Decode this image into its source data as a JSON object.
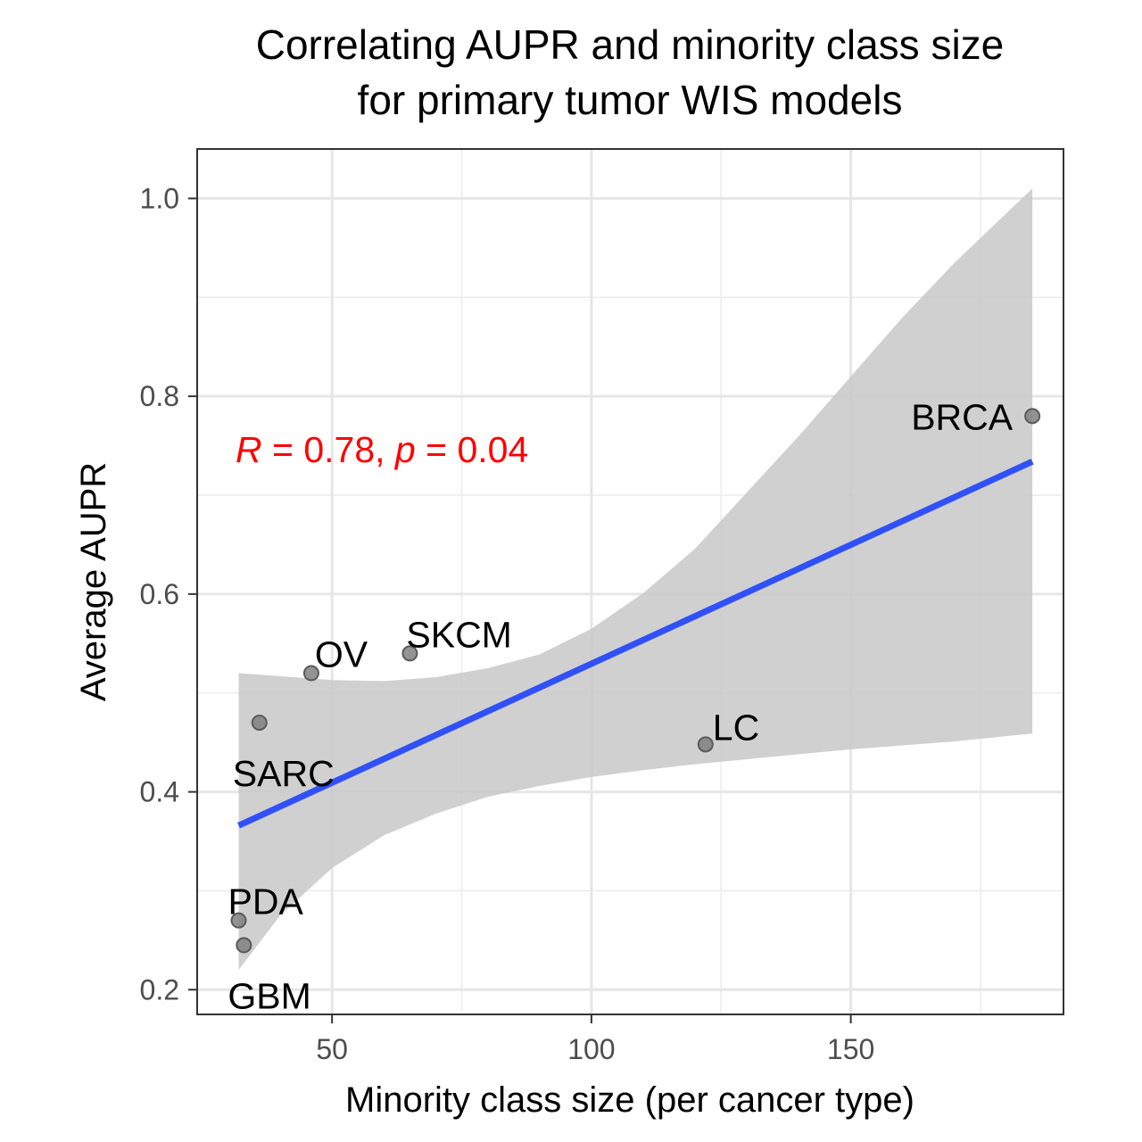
{
  "chart_data": {
    "type": "scatter",
    "title_lines": [
      "Correlating AUPR and minority class size",
      "for primary tumor WIS models"
    ],
    "xlabel": "Minority class size (per cancer type)",
    "ylabel": "Average AUPR",
    "xlim": [
      24,
      191
    ],
    "ylim": [
      0.175,
      1.05
    ],
    "x_ticks": [
      50,
      100,
      150
    ],
    "x_minor_ticks": [
      75,
      125,
      175
    ],
    "y_ticks": [
      0.2,
      0.4,
      0.6,
      0.8,
      1.0
    ],
    "y_tick_labels": [
      "0.2",
      "0.4",
      "0.6",
      "0.8",
      "1.0"
    ],
    "y_minor_ticks": [
      0.3,
      0.5,
      0.7,
      0.9
    ],
    "grid": true,
    "points": [
      {
        "label": "BRCA",
        "x": 185,
        "y": 0.78
      },
      {
        "label": "LC",
        "x": 122,
        "y": 0.448
      },
      {
        "label": "SKCM",
        "x": 65,
        "y": 0.54
      },
      {
        "label": "OV",
        "x": 46,
        "y": 0.52
      },
      {
        "label": "SARC",
        "x": 36,
        "y": 0.47
      },
      {
        "label": "PDA",
        "x": 32,
        "y": 0.27
      },
      {
        "label": "GBM",
        "x": 33,
        "y": 0.245
      }
    ],
    "fit_line": {
      "x": [
        32,
        185
      ],
      "y": [
        0.366,
        0.734
      ],
      "color": "#3050f8"
    },
    "confidence_band": {
      "x": [
        32,
        40,
        50,
        60,
        70,
        80,
        90,
        100,
        110,
        120,
        130,
        140,
        150,
        160,
        170,
        185
      ],
      "lower": [
        0.22,
        0.275,
        0.323,
        0.356,
        0.378,
        0.395,
        0.406,
        0.415,
        0.422,
        0.428,
        0.433,
        0.438,
        0.443,
        0.447,
        0.451,
        0.459
      ],
      "upper": [
        0.52,
        0.517,
        0.513,
        0.512,
        0.516,
        0.525,
        0.539,
        0.565,
        0.601,
        0.646,
        0.703,
        0.76,
        0.82,
        0.88,
        0.935,
        1.01
      ],
      "color": "#c8c8c8"
    },
    "point_color": "#808080",
    "annotation": {
      "parts": [
        {
          "text": "R",
          "italic": true
        },
        {
          "text": " = 0.78, ",
          "italic": false
        },
        {
          "text": "p",
          "italic": true
        },
        {
          "text": " = 0.04",
          "italic": false
        }
      ],
      "color": "#ff0000"
    }
  }
}
